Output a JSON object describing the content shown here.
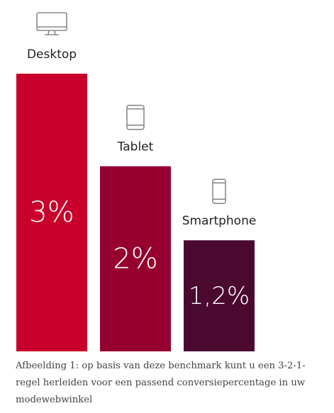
{
  "chart_data": {
    "type": "bar",
    "categories": [
      "Desktop",
      "Tablet",
      "Smartphone"
    ],
    "values": [
      3,
      2,
      1.2
    ],
    "value_labels": [
      "3%",
      "2%",
      "1,2%"
    ],
    "colors": [
      "#c8002b",
      "#950031",
      "#4a0a30"
    ],
    "icons": [
      "desktop-monitor-icon",
      "tablet-icon",
      "smartphone-icon"
    ],
    "ylim": [
      0,
      3
    ],
    "grid": false,
    "legend": "none"
  },
  "caption": "Afbeelding 1: op basis van deze benchmark kunt u een 3-2-1-regel herleiden voor een passend conversiepercentage in uw modewebwinkel"
}
